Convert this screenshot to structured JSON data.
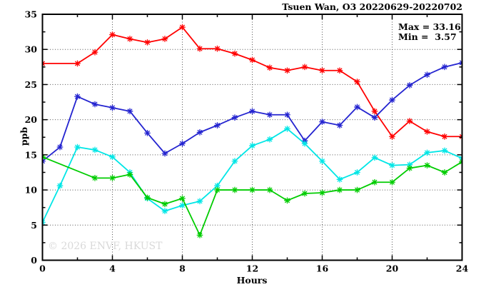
{
  "chart_data": {
    "type": "line",
    "title": "Tsuen Wan, O3 20220629-20220702",
    "xlabel": "Hours",
    "ylabel": "ppb",
    "annotation": {
      "max_label": "Max = 33.16",
      "min_label": "Min =  3.57",
      "max_value": 33.16,
      "min_value": 3.57
    },
    "watermark": "© 2026 ENVF, HKUST",
    "xlim": [
      0,
      24
    ],
    "ylim": [
      0,
      35
    ],
    "xticks": [
      0,
      4,
      8,
      12,
      16,
      20,
      24
    ],
    "yticks": [
      0,
      5,
      10,
      15,
      20,
      25,
      30,
      35
    ],
    "x_minor_ticks": [
      2,
      6,
      10,
      14,
      18,
      22
    ],
    "y_minor_ticks": [
      2.5,
      7.5,
      12.5,
      17.5,
      22.5,
      27.5,
      32.5
    ],
    "grid": true,
    "legend": "none",
    "marker": "asterisk",
    "x": [
      0,
      1,
      2,
      3,
      4,
      5,
      6,
      7,
      8,
      9,
      10,
      11,
      12,
      13,
      14,
      15,
      16,
      17,
      18,
      19,
      20,
      21,
      22,
      23,
      24
    ],
    "series": [
      {
        "name": "series-red",
        "color": "#ff0000",
        "values": [
          28.0,
          null,
          28.0,
          29.6,
          32.1,
          31.5,
          31.0,
          31.5,
          33.16,
          30.1,
          30.1,
          29.4,
          28.5,
          27.4,
          27.0,
          27.5,
          27.0,
          27.0,
          25.4,
          21.2,
          17.6,
          19.8,
          18.3,
          17.6,
          17.6
        ]
      },
      {
        "name": "series-blue",
        "color": "#2424d0",
        "values": [
          14.1,
          16.1,
          23.3,
          22.2,
          21.7,
          21.2,
          18.1,
          15.2,
          16.6,
          18.2,
          19.2,
          20.3,
          21.2,
          20.7,
          20.7,
          17.0,
          19.7,
          19.2,
          21.8,
          20.3,
          22.8,
          24.9,
          26.4,
          27.5,
          28.1
        ]
      },
      {
        "name": "series-cyan",
        "color": "#00e6e6",
        "values": [
          5.4,
          10.6,
          16.1,
          15.7,
          14.7,
          12.5,
          8.8,
          7.0,
          7.8,
          8.4,
          10.6,
          14.1,
          16.3,
          17.2,
          18.7,
          16.6,
          14.1,
          11.5,
          12.5,
          14.6,
          13.5,
          13.6,
          15.3,
          15.6,
          14.5
        ]
      },
      {
        "name": "series-green",
        "color": "#00cc00",
        "values": [
          14.7,
          null,
          null,
          11.7,
          11.7,
          12.2,
          8.9,
          8.0,
          8.8,
          3.57,
          10.0,
          10.0,
          10.0,
          10.0,
          8.5,
          9.5,
          9.6,
          10.0,
          10.0,
          11.1,
          11.1,
          13.1,
          13.5,
          12.5,
          14.0
        ]
      }
    ],
    "colors": {
      "grid": "#555555",
      "axis": "#000000",
      "watermark": "#d9d9d9",
      "background": "#ffffff"
    }
  }
}
